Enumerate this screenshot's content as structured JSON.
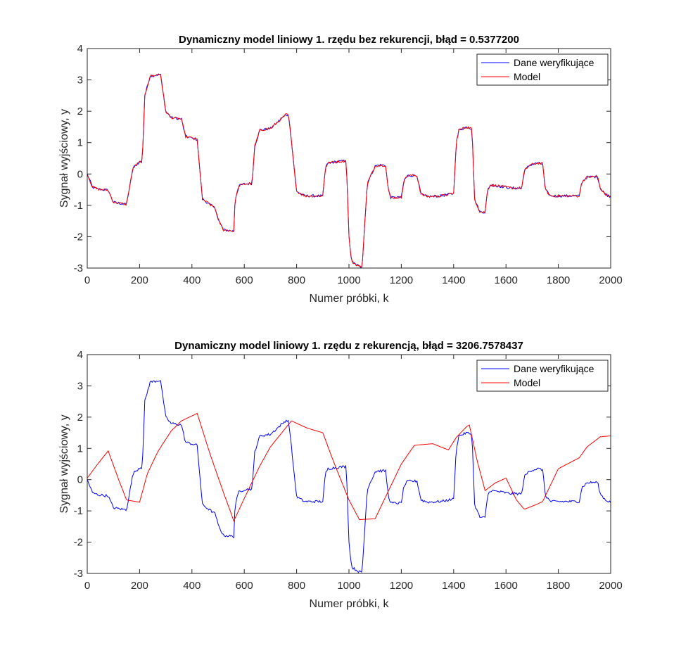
{
  "chart_data": [
    {
      "type": "line",
      "title": "Dynamiczny model liniowy 1. rzędu bez rekurencji, błąd = 0.5377200",
      "xlabel": "Numer próbki, k",
      "ylabel": "Sygnał wyjściowy, y",
      "xlim": [
        0,
        2000
      ],
      "ylim": [
        -3,
        4
      ],
      "xticks": [
        0,
        200,
        400,
        600,
        800,
        1000,
        1200,
        1400,
        1600,
        1800,
        2000
      ],
      "yticks": [
        -3,
        -2,
        -1,
        0,
        1,
        2,
        3,
        4
      ],
      "grid": false,
      "legend_position": "top-right",
      "series": [
        {
          "name": "Dane weryfikujące",
          "color": "#0000ff",
          "x": [
            0,
            20,
            40,
            80,
            100,
            150,
            175,
            200,
            210,
            220,
            240,
            280,
            300,
            320,
            360,
            375,
            420,
            440,
            490,
            500,
            520,
            560,
            565,
            580,
            600,
            630,
            640,
            660,
            700,
            760,
            770,
            800,
            830,
            900,
            910,
            920,
            960,
            990,
            1000,
            1010,
            1040,
            1050,
            1070,
            1100,
            1110,
            1140,
            1150,
            1160,
            1200,
            1210,
            1225,
            1260,
            1275,
            1300,
            1350,
            1400,
            1410,
            1420,
            1450,
            1470,
            1480,
            1500,
            1520,
            1530,
            1540,
            1570,
            1620,
            1660,
            1670,
            1690,
            1720,
            1740,
            1750,
            1770,
            1800,
            1880,
            1890,
            1910,
            1950,
            1960,
            1980,
            2000
          ],
          "y": [
            0.0,
            -0.42,
            -0.48,
            -0.52,
            -0.9,
            -0.97,
            0.2,
            0.38,
            0.4,
            2.5,
            3.12,
            3.18,
            2.0,
            1.8,
            1.75,
            1.2,
            1.1,
            -0.8,
            -1.1,
            -1.45,
            -1.78,
            -1.82,
            -0.8,
            -0.38,
            -0.32,
            -0.3,
            0.9,
            1.4,
            1.45,
            1.9,
            1.85,
            -0.55,
            -0.7,
            -0.7,
            0.2,
            0.35,
            0.4,
            0.42,
            -2.0,
            -2.8,
            -2.95,
            -2.98,
            -0.3,
            0.25,
            0.28,
            0.28,
            -0.5,
            -0.75,
            -0.75,
            -0.2,
            -0.05,
            -0.05,
            -0.65,
            -0.72,
            -0.7,
            -0.62,
            1.0,
            1.4,
            1.5,
            1.45,
            -0.8,
            -1.2,
            -1.22,
            -0.5,
            -0.35,
            -0.38,
            -0.45,
            -0.45,
            0.1,
            0.28,
            0.35,
            0.32,
            -0.5,
            -0.7,
            -0.7,
            -0.7,
            -0.25,
            -0.1,
            -0.08,
            -0.45,
            -0.65,
            -0.72
          ]
        },
        {
          "name": "Model",
          "color": "#ff0000",
          "x": [
            0,
            20,
            40,
            80,
            100,
            150,
            175,
            200,
            210,
            220,
            240,
            280,
            300,
            320,
            360,
            375,
            420,
            440,
            490,
            500,
            520,
            560,
            565,
            580,
            600,
            630,
            640,
            660,
            700,
            760,
            770,
            800,
            830,
            900,
            910,
            920,
            960,
            990,
            1000,
            1010,
            1040,
            1050,
            1070,
            1100,
            1110,
            1140,
            1150,
            1160,
            1200,
            1210,
            1225,
            1260,
            1275,
            1300,
            1350,
            1400,
            1410,
            1420,
            1450,
            1470,
            1480,
            1500,
            1520,
            1530,
            1540,
            1570,
            1620,
            1660,
            1670,
            1690,
            1720,
            1740,
            1750,
            1770,
            1800,
            1880,
            1890,
            1910,
            1950,
            1960,
            1980,
            2000
          ],
          "y": [
            0.0,
            -0.42,
            -0.48,
            -0.52,
            -0.9,
            -0.97,
            0.2,
            0.38,
            0.4,
            2.5,
            3.12,
            3.18,
            2.0,
            1.8,
            1.75,
            1.2,
            1.1,
            -0.8,
            -1.1,
            -1.45,
            -1.78,
            -1.82,
            -0.8,
            -0.38,
            -0.32,
            -0.3,
            0.9,
            1.4,
            1.45,
            1.9,
            1.85,
            -0.55,
            -0.7,
            -0.7,
            0.2,
            0.35,
            0.4,
            0.42,
            -2.0,
            -2.8,
            -2.95,
            -2.98,
            -0.3,
            0.25,
            0.28,
            0.28,
            -0.5,
            -0.75,
            -0.75,
            -0.2,
            -0.05,
            -0.05,
            -0.65,
            -0.72,
            -0.7,
            -0.62,
            1.0,
            1.4,
            1.5,
            1.45,
            -0.8,
            -1.2,
            -1.22,
            -0.5,
            -0.35,
            -0.38,
            -0.45,
            -0.45,
            0.1,
            0.28,
            0.35,
            0.32,
            -0.5,
            -0.7,
            -0.7,
            -0.7,
            -0.25,
            -0.1,
            -0.08,
            -0.45,
            -0.65,
            -0.72
          ]
        }
      ]
    },
    {
      "type": "line",
      "title": "Dynamiczny model liniowy 1. rzędu z rekurencją, błąd = 3206.7578437",
      "xlabel": "Numer próbki, k",
      "ylabel": "Sygnał wyjściowy, y",
      "xlim": [
        0,
        2000
      ],
      "ylim": [
        -3,
        4
      ],
      "xticks": [
        0,
        200,
        400,
        600,
        800,
        1000,
        1200,
        1400,
        1600,
        1800,
        2000
      ],
      "yticks": [
        -3,
        -2,
        -1,
        0,
        1,
        2,
        3,
        4
      ],
      "grid": false,
      "legend_position": "top-right",
      "series": [
        {
          "name": "Dane weryfikujące",
          "color": "#0000ff",
          "x": [
            0,
            20,
            40,
            80,
            100,
            150,
            175,
            200,
            210,
            220,
            240,
            280,
            300,
            320,
            360,
            375,
            420,
            440,
            490,
            500,
            520,
            560,
            565,
            580,
            600,
            630,
            640,
            660,
            700,
            760,
            770,
            800,
            830,
            900,
            910,
            920,
            960,
            990,
            1000,
            1010,
            1040,
            1050,
            1070,
            1100,
            1110,
            1140,
            1150,
            1160,
            1200,
            1210,
            1225,
            1260,
            1275,
            1300,
            1350,
            1400,
            1410,
            1420,
            1450,
            1470,
            1480,
            1500,
            1520,
            1530,
            1540,
            1570,
            1620,
            1660,
            1670,
            1690,
            1720,
            1740,
            1750,
            1770,
            1800,
            1880,
            1890,
            1910,
            1950,
            1960,
            1980,
            2000
          ],
          "y": [
            0.0,
            -0.42,
            -0.48,
            -0.52,
            -0.9,
            -0.97,
            0.2,
            0.38,
            0.4,
            2.5,
            3.12,
            3.18,
            2.0,
            1.8,
            1.75,
            1.2,
            1.1,
            -0.8,
            -1.1,
            -1.45,
            -1.78,
            -1.82,
            -0.8,
            -0.38,
            -0.32,
            -0.3,
            0.9,
            1.4,
            1.45,
            1.9,
            1.85,
            -0.55,
            -0.7,
            -0.7,
            0.2,
            0.35,
            0.4,
            0.42,
            -2.0,
            -2.8,
            -2.95,
            -2.98,
            -0.3,
            0.25,
            0.28,
            0.28,
            -0.5,
            -0.75,
            -0.75,
            -0.2,
            -0.05,
            -0.05,
            -0.65,
            -0.72,
            -0.7,
            -0.62,
            1.0,
            1.4,
            1.5,
            1.45,
            -0.8,
            -1.2,
            -1.22,
            -0.5,
            -0.35,
            -0.38,
            -0.45,
            -0.45,
            0.1,
            0.28,
            0.35,
            0.32,
            -0.5,
            -0.7,
            -0.7,
            -0.7,
            -0.25,
            -0.1,
            -0.08,
            -0.45,
            -0.65,
            -0.72
          ]
        },
        {
          "name": "Model",
          "color": "#ff0000",
          "x": [
            0,
            40,
            80,
            120,
            150,
            200,
            230,
            270,
            320,
            360,
            420,
            470,
            520,
            560,
            600,
            660,
            700,
            780,
            840,
            900,
            940,
            1000,
            1040,
            1100,
            1160,
            1200,
            1250,
            1320,
            1380,
            1410,
            1450,
            1460,
            1490,
            1520,
            1560,
            1600,
            1640,
            1670,
            1720,
            1740,
            1800,
            1880,
            1910,
            1960,
            2000
          ],
          "y": [
            0.05,
            0.5,
            0.92,
            0.0,
            -0.65,
            -0.72,
            0.2,
            0.9,
            1.55,
            1.88,
            2.12,
            0.8,
            -0.4,
            -1.32,
            -0.6,
            0.45,
            1.05,
            1.88,
            1.65,
            1.5,
            0.6,
            -0.65,
            -1.28,
            -1.25,
            -0.2,
            0.5,
            1.1,
            1.15,
            0.95,
            1.35,
            1.7,
            1.75,
            0.6,
            -0.35,
            -0.1,
            0.05,
            -0.65,
            -0.95,
            -0.78,
            -0.7,
            0.35,
            0.7,
            1.05,
            1.37,
            1.4
          ]
        }
      ]
    }
  ]
}
